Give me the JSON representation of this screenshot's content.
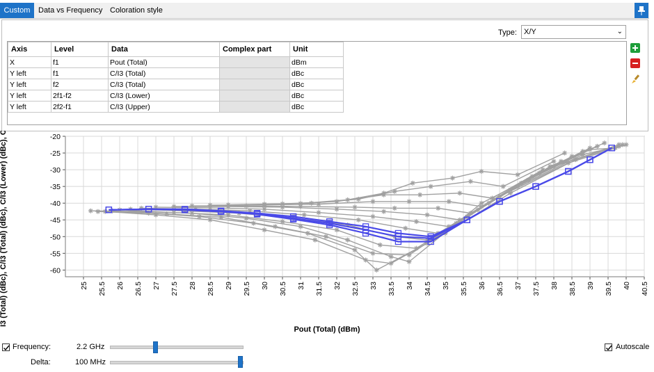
{
  "tabs": [
    {
      "label": "Custom",
      "active": true
    },
    {
      "label": "Data vs Frequency",
      "active": false
    },
    {
      "label": "Coloration style",
      "active": false
    }
  ],
  "type": {
    "label": "Type:",
    "value": "X/Y"
  },
  "table": {
    "headers": [
      "Axis",
      "Level",
      "Data",
      "Complex part",
      "Unit"
    ],
    "rows": [
      [
        "X",
        "f1",
        "Pout (Total)",
        "",
        "dBm"
      ],
      [
        "Y left",
        "f1",
        "C/I3 (Total)",
        "",
        "dBc"
      ],
      [
        "Y left",
        "f2",
        "C/I3 (Total)",
        "",
        "dBc"
      ],
      [
        "Y left",
        "2f1-f2",
        "C/I3 (Lower)",
        "",
        "dBc"
      ],
      [
        "Y left",
        "2f2-f1",
        "C/I3 (Upper)",
        "",
        "dBc"
      ]
    ]
  },
  "icons": [
    "pin-icon",
    "add-icon",
    "remove-icon",
    "brush-icon"
  ],
  "colors": {
    "accent": "#1e73c8",
    "highlight_series": "#4a4ae8",
    "gray_series": "#a0a0a0"
  },
  "chart_data": {
    "type": "line",
    "xlabel": "Pout (Total) (dBm)",
    "ylabel": "I3 (Total) (dBc), C/I3 (Total) (dBc), C/I3 (Lower) (dBc), C",
    "xlim": [
      24.5,
      40.5
    ],
    "ylim": [
      -62,
      -20
    ],
    "x_ticks": [
      "25",
      "25.5",
      "26",
      "26.5",
      "27",
      "27.5",
      "28",
      "28.5",
      "29",
      "29.5",
      "30",
      "30.5",
      "31",
      "31.5",
      "32",
      "32.5",
      "33",
      "33.5",
      "34",
      "34.5",
      "35",
      "35.5",
      "36",
      "36.5",
      "37",
      "37.5",
      "38",
      "38.5",
      "39",
      "39.5",
      "40",
      "40.5"
    ],
    "y_ticks": [
      "-20",
      "-25",
      "-30",
      "-35",
      "-40",
      "-45",
      "-50",
      "-55",
      "-60"
    ],
    "grid": true,
    "highlight_series": [
      {
        "x": [
          25.7,
          26.8,
          27.8,
          28.8,
          29.8,
          30.8,
          31.8,
          32.8,
          33.7,
          34.6,
          35.6,
          36.5,
          37.5,
          38.4,
          39.0,
          39.6
        ],
        "y": [
          -42,
          -41.8,
          -42,
          -42.5,
          -43.2,
          -44.5,
          -46,
          -48,
          -50,
          -50.5,
          -45,
          -39.5,
          -35,
          -30.5,
          -27,
          -23.5
        ]
      },
      {
        "x": [
          25.7,
          26.8,
          27.8,
          28.8,
          29.8,
          30.8,
          31.8,
          32.8,
          33.7,
          34.6,
          35.6,
          36.5,
          37.5,
          38.4,
          39.0,
          39.6
        ],
        "y": [
          -42,
          -41.8,
          -42,
          -42.5,
          -43.3,
          -44.8,
          -46.5,
          -49,
          -51.5,
          -51.5,
          -45,
          -39.5,
          -35,
          -30.5,
          -27,
          -23.5
        ]
      },
      {
        "x": [
          25.7,
          26.8,
          27.8,
          28.8,
          29.8,
          30.8,
          31.8,
          32.8,
          33.7,
          34.6,
          35.6,
          36.5,
          37.5,
          38.4,
          39.0,
          39.6
        ],
        "y": [
          -42,
          -41.8,
          -41.8,
          -42.3,
          -43,
          -44,
          -45.5,
          -47,
          -49,
          -50,
          -45,
          -39.5,
          -35,
          -30.5,
          -27,
          -23.5
        ]
      }
    ],
    "gray_series": [
      {
        "x": [
          25.2,
          26.5,
          28,
          29.5,
          31,
          32.3,
          33.5,
          34,
          36,
          38,
          39.8
        ],
        "y": [
          -42.3,
          -42.5,
          -43,
          -44.5,
          -47,
          -51,
          -56,
          -57.5,
          -40,
          -29,
          -22.5
        ]
      },
      {
        "x": [
          25.4,
          26.8,
          28.2,
          29.7,
          31.2,
          32.5,
          33.1,
          34.5,
          36.5,
          38.4,
          40
        ],
        "y": [
          -42.5,
          -43,
          -44,
          -46,
          -49,
          -54,
          -60,
          -52,
          -38,
          -28,
          -22.5
        ]
      },
      {
        "x": [
          25.6,
          27,
          28.5,
          30,
          31.4,
          32.8,
          33.5,
          35,
          36.8,
          38.6,
          39.9
        ],
        "y": [
          -42.5,
          -43.5,
          -45,
          -48,
          -51,
          -57,
          -58,
          -49,
          -37,
          -27,
          -22.5
        ]
      },
      {
        "x": [
          25.8,
          27.3,
          28.8,
          30.3,
          31.7,
          33,
          34,
          35.3,
          37,
          38.8,
          39.8
        ],
        "y": [
          -42.3,
          -43.2,
          -44.2,
          -47,
          -50,
          -55,
          -55.5,
          -46,
          -35,
          -25.5,
          -23
        ]
      },
      {
        "x": [
          26,
          27.5,
          29,
          30.5,
          32,
          33.2,
          34.2,
          35.6,
          37.3,
          39,
          39.7
        ],
        "y": [
          -42,
          -42.8,
          -43.5,
          -45.5,
          -48,
          -52.5,
          -53.5,
          -44,
          -33,
          -24,
          -23.5
        ]
      },
      {
        "x": [
          26.3,
          27.8,
          29.3,
          30.8,
          32.3,
          33.6,
          34.5,
          35.9,
          37.6,
          39.2
        ],
        "y": [
          -41.8,
          -42.3,
          -43,
          -44.5,
          -46.5,
          -50,
          -51,
          -42,
          -31,
          -23
        ]
      },
      {
        "x": [
          26.6,
          28.1,
          29.6,
          31.1,
          32.6,
          33.9,
          34.8,
          36.2,
          37.9,
          39.4
        ],
        "y": [
          -41.5,
          -41.8,
          -42.3,
          -43.5,
          -45,
          -47.5,
          -49,
          -40,
          -29,
          -22
        ]
      },
      {
        "x": [
          27,
          28.5,
          30,
          31.5,
          33,
          34.2,
          35.1,
          36.5,
          38.2
        ],
        "y": [
          -41.2,
          -41.4,
          -41.8,
          -42.8,
          -44,
          -45.5,
          -47,
          -38,
          -27.5
        ]
      },
      {
        "x": [
          27.5,
          29,
          30.5,
          32,
          33.3,
          34.5,
          35.4,
          36.8,
          38.5
        ],
        "y": [
          -41,
          -41,
          -41.2,
          -41.8,
          -42.5,
          -43.5,
          -45,
          -36,
          -26
        ]
      },
      {
        "x": [
          28,
          29.5,
          31,
          32.5,
          33.6,
          34.8,
          35.7,
          37.1,
          38.8
        ],
        "y": [
          -40.8,
          -40.8,
          -41,
          -41.2,
          -41.5,
          -41.5,
          -43,
          -34,
          -24.5
        ]
      },
      {
        "x": [
          28.5,
          30,
          31.5,
          33,
          34,
          35.1,
          36,
          37.4,
          39
        ],
        "y": [
          -40.6,
          -40.5,
          -40.3,
          -39.5,
          -39.5,
          -39.5,
          -41,
          -32,
          -23.5
        ]
      },
      {
        "x": [
          29,
          30.5,
          32,
          33.3,
          34.3,
          35.4,
          36.3,
          37.7
        ],
        "y": [
          -40.5,
          -40.2,
          -39.5,
          -37.5,
          -37.5,
          -37,
          -38.5,
          -30
        ]
      },
      {
        "x": [
          30,
          31.3,
          32.6,
          33.6,
          34.6,
          35.7,
          36.6,
          38
        ],
        "y": [
          -40.3,
          -40,
          -38.8,
          -36.5,
          -35,
          -33.5,
          -35,
          -27.5
        ]
      },
      {
        "x": [
          31,
          32.3,
          33.3,
          34.1,
          35.2,
          36,
          37,
          38.3
        ],
        "y": [
          -40.1,
          -39,
          -37,
          -34,
          -32.5,
          -30.5,
          -31.5,
          -25
        ]
      }
    ]
  },
  "controls": {
    "frequency_label": "Frequency:",
    "frequency_value": "2.2 GHz",
    "frequency_position": 0.34,
    "delta_label": "Delta:",
    "delta_value": "100 MHz",
    "delta_position": 1.0,
    "autoscale_label": "Autoscale",
    "frequency_checked": true,
    "autoscale_checked": true
  }
}
